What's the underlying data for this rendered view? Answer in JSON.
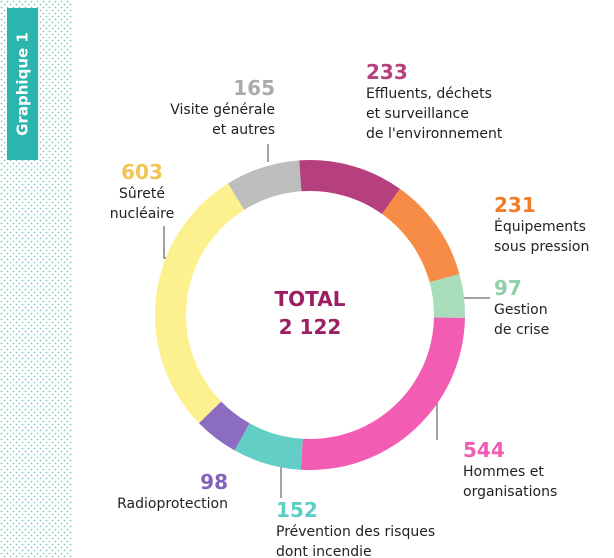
{
  "sidebar_label": "Graphique 1",
  "chart_data": {
    "type": "donut",
    "center_text": [
      "TOTAL",
      "2 122"
    ],
    "categories": [
      "Effluents, déchets\net surveillance\nde l'environnement",
      "Équipements\nsous pression",
      "Gestion\nde crise",
      "Hommes et\norganisations",
      "Prévention des risques\ndont incendie",
      "Radioprotection",
      "Sûreté\nnucléaire",
      "Visite générale\net autres"
    ],
    "values": [
      233,
      231,
      97,
      544,
      152,
      98,
      603,
      165
    ],
    "colors": [
      "#b5407d",
      "#f68c45",
      "#a9dcba",
      "#f25db3",
      "#62cec5",
      "#8c6cc1",
      "#fdf08e",
      "#bdbdbd"
    ],
    "label_colors": [
      "#b5407d",
      "#f07d2a",
      "#8fd0a8",
      "#f25db3",
      "#5ecdc4",
      "#8462b8",
      "#f3c453",
      "#aaaaaa"
    ]
  }
}
